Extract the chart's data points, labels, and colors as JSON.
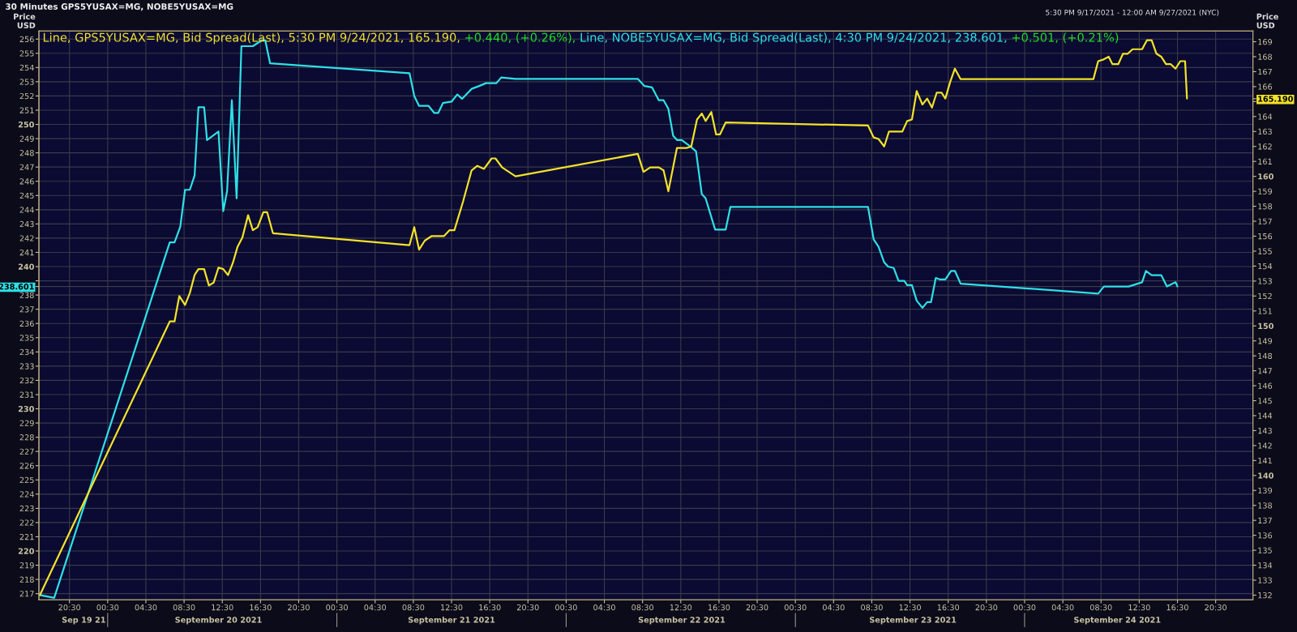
{
  "chart_data": {
    "type": "line",
    "title": "30 Minutes GPS5YUSAX=MG, NOBE5YUSAX=MG",
    "subtitle": "5:30 PM 9/17/2021 - 12:00 AM 9/27/2021 (NYC)",
    "ylabel": "Price\nUSD",
    "y2label": "Price\nUSD",
    "annotations": [
      "+0.440, (+0.26%),",
      "+0.501, (+0.21%)"
    ],
    "legend": "top left",
    "grid": true,
    "series": [
      {
        "name": "Line, GPS5YUSAX=MG, Bid Spread(Last), 5:30 PM 9/24/2021, 165.190,",
        "color": "#f2e22a",
        "axis": "y2",
        "x": [
          "2021-09-19T17:24",
          "2021-09-20T07:00",
          "2021-09-20T07:30",
          "2021-09-20T08:00",
          "2021-09-20T08:36",
          "2021-09-20T09:06",
          "2021-09-20T09:36",
          "2021-09-20T10:00",
          "2021-09-20T10:36",
          "2021-09-20T11:06",
          "2021-09-20T11:36",
          "2021-09-20T12:06",
          "2021-09-20T12:36",
          "2021-09-20T13:06",
          "2021-09-20T13:36",
          "2021-09-20T14:06",
          "2021-09-20T14:36",
          "2021-09-20T15:12",
          "2021-09-20T15:42",
          "2021-09-20T16:12",
          "2021-09-20T16:48",
          "2021-09-20T17:12",
          "2021-09-20T17:48",
          "2021-09-21T08:06",
          "2021-09-21T08:36",
          "2021-09-21T09:06",
          "2021-09-21T09:42",
          "2021-09-21T10:24",
          "2021-09-21T11:42",
          "2021-09-21T12:18",
          "2021-09-21T12:48",
          "2021-09-21T13:42",
          "2021-09-21T14:36",
          "2021-09-21T15:12",
          "2021-09-21T15:54",
          "2021-09-21T16:42",
          "2021-09-21T17:06",
          "2021-09-21T17:48",
          "2021-09-21T19:12",
          "2021-09-22T08:00",
          "2021-09-22T08:36",
          "2021-09-22T09:18",
          "2021-09-22T10:12",
          "2021-09-22T10:42",
          "2021-09-22T11:12",
          "2021-09-22T12:06",
          "2021-09-22T13:06",
          "2021-09-22T13:36",
          "2021-09-22T14:12",
          "2021-09-22T14:42",
          "2021-09-22T15:06",
          "2021-09-22T15:42",
          "2021-09-22T16:12",
          "2021-09-22T16:36",
          "2021-09-22T17:12",
          "2021-09-23T08:06",
          "2021-09-23T08:42",
          "2021-09-23T09:12",
          "2021-09-23T09:48",
          "2021-09-23T10:18",
          "2021-09-23T11:42",
          "2021-09-23T12:12",
          "2021-09-23T12:42",
          "2021-09-23T13:12",
          "2021-09-23T13:48",
          "2021-09-23T14:18",
          "2021-09-23T14:48",
          "2021-09-23T15:18",
          "2021-09-23T15:48",
          "2021-09-23T16:12",
          "2021-09-23T16:42",
          "2021-09-23T17:12",
          "2021-09-23T17:48",
          "2021-09-24T00:42",
          "2021-09-24T07:42",
          "2021-09-24T08:12",
          "2021-09-24T08:42",
          "2021-09-24T09:18",
          "2021-09-24T09:42",
          "2021-09-24T10:18",
          "2021-09-24T10:48",
          "2021-09-24T11:18",
          "2021-09-24T11:48",
          "2021-09-24T12:48",
          "2021-09-24T13:18",
          "2021-09-24T13:48",
          "2021-09-24T14:18",
          "2021-09-24T14:48",
          "2021-09-24T15:18",
          "2021-09-24T15:48",
          "2021-09-24T16:18",
          "2021-09-24T16:48",
          "2021-09-24T17:18",
          "2021-09-24T17:30"
        ],
        "values": [
          132.0,
          150.3,
          150.3,
          152.0,
          151.4,
          152.2,
          153.4,
          153.8,
          153.8,
          152.7,
          152.9,
          153.9,
          153.8,
          153.4,
          154.2,
          155.3,
          155.9,
          157.4,
          156.4,
          156.6,
          157.6,
          157.6,
          156.2,
          155.4,
          156.6,
          155.1,
          155.7,
          156.0,
          156.0,
          156.4,
          156.4,
          158.3,
          160.4,
          160.7,
          160.5,
          161.2,
          161.2,
          160.6,
          160.0,
          161.5,
          160.3,
          160.6,
          160.6,
          160.4,
          159.0,
          161.9,
          161.9,
          162.0,
          163.8,
          164.2,
          163.7,
          164.3,
          162.8,
          162.8,
          163.6,
          163.4,
          162.6,
          162.5,
          162.0,
          163.0,
          163.0,
          163.7,
          163.8,
          165.7,
          164.8,
          165.2,
          164.6,
          165.6,
          165.6,
          165.2,
          166.3,
          167.2,
          166.5,
          166.5,
          166.5,
          167.7,
          167.8,
          168.0,
          167.5,
          167.5,
          168.2,
          168.2,
          168.5,
          168.5,
          169.1,
          169.1,
          168.2,
          168.0,
          167.5,
          167.5,
          167.2,
          167.7,
          167.7,
          165.2
        ]
      },
      {
        "name": "Line, NOBE5YUSAX=MG, Bid Spread(Last), 4:30 PM 9/24/2021, 238.601,",
        "color": "#2ee0e6",
        "x": [
          "2021-09-19T17:24",
          "2021-09-19T18:54",
          "2021-09-20T07:00",
          "2021-09-20T07:30",
          "2021-09-20T08:06",
          "2021-09-20T08:36",
          "2021-09-20T09:06",
          "2021-09-20T09:36",
          "2021-09-20T10:00",
          "2021-09-20T10:36",
          "2021-09-20T10:54",
          "2021-09-20T12:06",
          "2021-09-20T12:36",
          "2021-09-20T13:00",
          "2021-09-20T13:30",
          "2021-09-20T14:00",
          "2021-09-20T14:30",
          "2021-09-20T15:42",
          "2021-09-20T16:36",
          "2021-09-20T17:00",
          "2021-09-20T17:30",
          "2021-09-21T08:06",
          "2021-09-21T08:36",
          "2021-09-21T09:06",
          "2021-09-21T10:06",
          "2021-09-21T10:42",
          "2021-09-21T11:06",
          "2021-09-21T11:36",
          "2021-09-21T12:30",
          "2021-09-21T13:06",
          "2021-09-21T13:36",
          "2021-09-21T14:36",
          "2021-09-21T15:24",
          "2021-09-21T16:06",
          "2021-09-21T17:12",
          "2021-09-21T17:42",
          "2021-09-21T19:12",
          "2021-09-22T08:00",
          "2021-09-22T08:42",
          "2021-09-22T09:30",
          "2021-09-22T10:12",
          "2021-09-22T10:42",
          "2021-09-22T11:12",
          "2021-09-22T11:42",
          "2021-09-22T12:06",
          "2021-09-22T12:36",
          "2021-09-22T13:12",
          "2021-09-22T13:36",
          "2021-09-22T14:06",
          "2021-09-22T14:42",
          "2021-09-22T15:06",
          "2021-09-22T16:06",
          "2021-09-22T17:12",
          "2021-09-22T17:42",
          "2021-09-23T08:06",
          "2021-09-23T08:42",
          "2021-09-23T09:12",
          "2021-09-23T09:48",
          "2021-09-23T10:12",
          "2021-09-23T10:48",
          "2021-09-23T11:18",
          "2021-09-23T11:54",
          "2021-09-23T12:12",
          "2021-09-23T12:42",
          "2021-09-23T13:12",
          "2021-09-23T13:48",
          "2021-09-23T14:18",
          "2021-09-23T14:42",
          "2021-09-23T15:12",
          "2021-09-23T15:36",
          "2021-09-23T16:12",
          "2021-09-23T16:48",
          "2021-09-23T17:12",
          "2021-09-23T17:48",
          "2021-09-24T08:12",
          "2021-09-24T08:48",
          "2021-09-24T11:24",
          "2021-09-24T12:48",
          "2021-09-24T13:12",
          "2021-09-24T13:48",
          "2021-09-24T14:48",
          "2021-09-24T15:24",
          "2021-09-24T16:18",
          "2021-09-24T16:30"
        ],
        "values": [
          216.9,
          216.7,
          241.7,
          241.7,
          242.8,
          245.4,
          245.4,
          246.4,
          251.2,
          251.2,
          248.9,
          249.5,
          243.9,
          245.3,
          251.7,
          244.8,
          255.5,
          255.5,
          255.9,
          255.9,
          254.3,
          253.6,
          252.0,
          251.3,
          251.3,
          250.8,
          250.8,
          251.5,
          251.6,
          252.1,
          251.8,
          252.5,
          252.7,
          252.9,
          252.9,
          253.3,
          253.2,
          253.2,
          252.7,
          252.6,
          251.7,
          251.7,
          251.1,
          249.2,
          248.9,
          248.9,
          248.6,
          248.4,
          248.1,
          245.1,
          244.8,
          242.6,
          242.6,
          244.2,
          244.2,
          241.9,
          241.4,
          240.3,
          240.0,
          239.9,
          239.0,
          239.0,
          238.7,
          238.7,
          237.6,
          237.1,
          237.5,
          237.5,
          239.2,
          239.1,
          239.1,
          239.7,
          239.7,
          238.8,
          238.1,
          238.6,
          238.6,
          238.9,
          239.7,
          239.4,
          239.4,
          238.6,
          238.9,
          238.6
        ]
      }
    ],
    "xlim": [
      "2021-09-19T17:18",
      "2021-09-25T00:24"
    ],
    "xticks": [
      {
        "value": "2021-09-19T20:30",
        "label": "20:30"
      },
      {
        "value": "2021-09-20T00:30",
        "label": "00:30"
      },
      {
        "value": "2021-09-20T04:30",
        "label": "04:30"
      },
      {
        "value": "2021-09-20T08:30",
        "label": "08:30"
      },
      {
        "value": "2021-09-20T12:30",
        "label": "12:30"
      },
      {
        "value": "2021-09-20T16:30",
        "label": "16:30"
      },
      {
        "value": "2021-09-20T20:30",
        "label": "20:30"
      },
      {
        "value": "2021-09-21T00:30",
        "label": "00:30"
      },
      {
        "value": "2021-09-21T04:30",
        "label": "04:30"
      },
      {
        "value": "2021-09-21T08:30",
        "label": "08:30"
      },
      {
        "value": "2021-09-21T12:30",
        "label": "12:30"
      },
      {
        "value": "2021-09-21T16:30",
        "label": "16:30"
      },
      {
        "value": "2021-09-21T20:30",
        "label": "20:30"
      },
      {
        "value": "2021-09-22T00:30",
        "label": "00:30"
      },
      {
        "value": "2021-09-22T04:30",
        "label": "04:30"
      },
      {
        "value": "2021-09-22T08:30",
        "label": "08:30"
      },
      {
        "value": "2021-09-22T12:30",
        "label": "12:30"
      },
      {
        "value": "2021-09-22T16:30",
        "label": "16:30"
      },
      {
        "value": "2021-09-22T20:30",
        "label": "20:30"
      },
      {
        "value": "2021-09-23T00:30",
        "label": "00:30"
      },
      {
        "value": "2021-09-23T04:30",
        "label": "04:30"
      },
      {
        "value": "2021-09-23T08:30",
        "label": "08:30"
      },
      {
        "value": "2021-09-23T12:30",
        "label": "12:30"
      },
      {
        "value": "2021-09-23T16:30",
        "label": "16:30"
      },
      {
        "value": "2021-09-23T20:30",
        "label": "20:30"
      },
      {
        "value": "2021-09-24T00:30",
        "label": "00:30"
      },
      {
        "value": "2021-09-24T04:30",
        "label": "04:30"
      },
      {
        "value": "2021-09-24T08:30",
        "label": "08:30"
      },
      {
        "value": "2021-09-24T12:30",
        "label": "12:30"
      },
      {
        "value": "2021-09-24T16:30",
        "label": "16:30"
      },
      {
        "value": "2021-09-24T20:30",
        "label": "20:30"
      }
    ],
    "x2lim": [
      "2021-09-19T17:18",
      "2021-09-25T00:24"
    ],
    "x2ticks": [
      {
        "value": "2021-09-19T22:00",
        "label": "Sep 19 21"
      },
      {
        "value": "2021-09-20T00:30",
        "label": null
      },
      {
        "value": "2021-09-20T12:06",
        "label": "September 20 2021"
      },
      {
        "value": "2021-09-21T00:30",
        "label": null
      },
      {
        "value": "2021-09-21T12:30",
        "label": "September 21 2021"
      },
      {
        "value": "2021-09-22T00:30",
        "label": null
      },
      {
        "value": "2021-09-22T12:36",
        "label": "September 22 2021"
      },
      {
        "value": "2021-09-23T00:30",
        "label": null
      },
      {
        "value": "2021-09-23T12:48",
        "label": "September 23 2021"
      },
      {
        "value": "2021-09-24T00:30",
        "label": null
      },
      {
        "value": "2021-09-24T10:12",
        "label": "September 24 2021"
      }
    ],
    "ylim": [
      216.57,
      256.57
    ],
    "yticks": [
      217,
      218,
      219,
      220,
      221,
      222,
      223,
      224,
      225,
      226,
      227,
      228,
      229,
      230,
      231,
      232,
      233,
      234,
      235,
      236,
      237,
      238,
      {
        "value": 239,
        "label": null
      },
      240,
      241,
      242,
      243,
      244,
      245,
      246,
      247,
      248,
      249,
      250,
      251,
      252,
      253,
      254,
      255,
      256,
      {
        "value": 238.601,
        "label": "238.601"
      }
    ],
    "y2lim": [
      131.69,
      169.72
    ],
    "y2ticks": [
      132,
      133,
      134,
      135,
      136,
      137,
      138,
      139,
      140,
      141,
      142,
      143,
      144,
      145,
      146,
      147,
      148,
      149,
      150,
      151,
      152,
      153,
      154,
      155,
      156,
      157,
      158,
      159,
      160,
      161,
      162,
      163,
      164,
      {
        "value": 165,
        "label": null
      },
      166,
      167,
      168,
      169,
      {
        "value": 165.19,
        "label": "165.190"
      }
    ]
  }
}
